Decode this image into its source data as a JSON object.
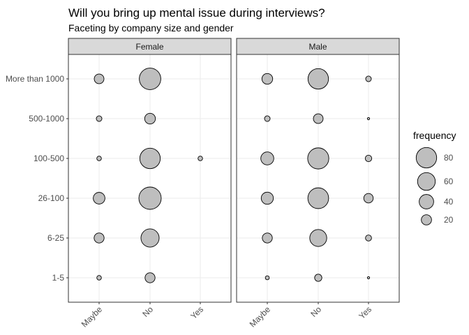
{
  "chart_data": {
    "type": "scatter",
    "title": "Will you bring up mental issue during interviews?",
    "subtitle": "Faceting by company size and gender",
    "x_categories": [
      "Maybe",
      "No",
      "Yes"
    ],
    "y_categories": [
      "1-5",
      "6-25",
      "26-100",
      "100-500",
      "500-1000",
      "More than 1000"
    ],
    "facets": [
      {
        "label": "Female",
        "values": {
          "More than 1000": [
            18,
            88,
            0
          ],
          "500-1000": [
            6,
            22,
            0
          ],
          "100-500": [
            4,
            80,
            4
          ],
          "26-100": [
            26,
            95,
            0
          ],
          "6-25": [
            19,
            63,
            0
          ],
          "1-5": [
            4,
            19,
            0
          ]
        }
      },
      {
        "label": "Male",
        "values": {
          "More than 1000": [
            22,
            80,
            6
          ],
          "500-1000": [
            6,
            18,
            1
          ],
          "100-500": [
            32,
            85,
            8
          ],
          "26-100": [
            28,
            82,
            17
          ],
          "6-25": [
            19,
            55,
            7
          ],
          "1-5": [
            3,
            10,
            1
          ]
        }
      }
    ],
    "size_legend": {
      "title": "frequency",
      "breaks": [
        80,
        60,
        40,
        20
      ]
    },
    "point_fill": "#bebebe",
    "point_stroke": "#000000",
    "strip_fill": "#d9d9d9",
    "grid": true,
    "legend_position": "right"
  }
}
